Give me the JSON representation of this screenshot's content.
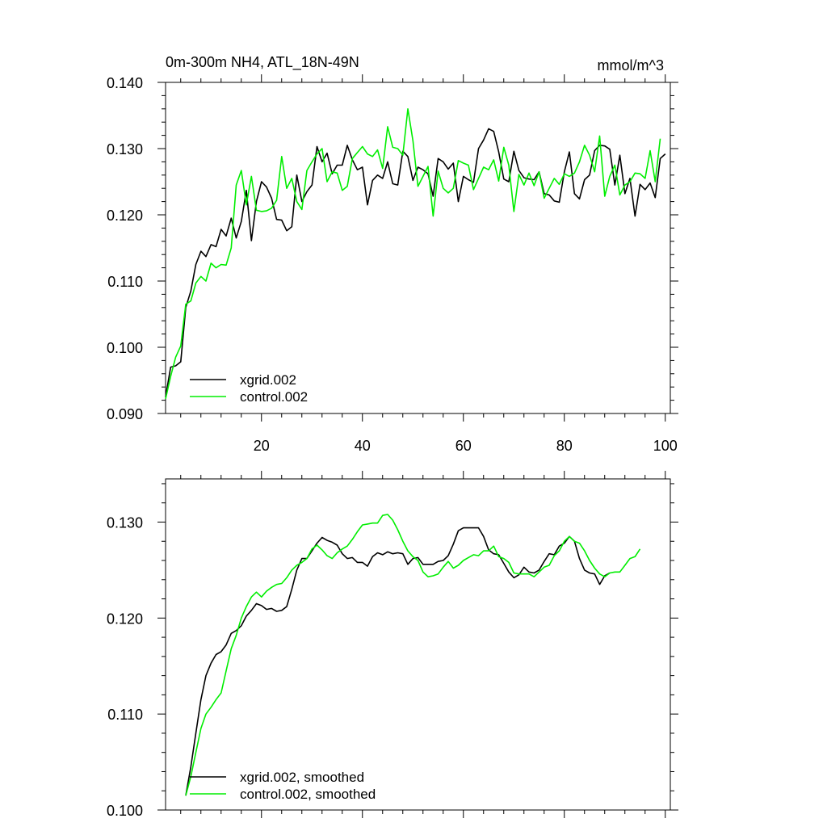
{
  "chart_data": [
    {
      "type": "line",
      "title": "0m-300m NH4, ATL_18N-49N",
      "units": "mmol/m^3",
      "xlim": [
        1,
        101
      ],
      "ylim": [
        0.09,
        0.14
      ],
      "x_ticks": [
        20,
        40,
        60,
        80,
        100
      ],
      "y_ticks": [
        "0.090",
        "0.100",
        "0.110",
        "0.120",
        "0.130",
        "0.140"
      ],
      "legend": {
        "placement": "bottom-left",
        "entries": [
          "xgrid.002",
          "control.002"
        ]
      },
      "series": [
        {
          "name": "xgrid.002",
          "color": "#000000",
          "x_start": 1,
          "values": [
            0.0925,
            0.097,
            0.0972,
            0.0978,
            0.106,
            0.1085,
            0.1125,
            0.1145,
            0.1137,
            0.1155,
            0.1152,
            0.1178,
            0.1168,
            0.1195,
            0.1165,
            0.119,
            0.1237,
            0.1161,
            0.122,
            0.125,
            0.1242,
            0.1225,
            0.1193,
            0.1192,
            0.1176,
            0.1182,
            0.126,
            0.122,
            0.1235,
            0.1245,
            0.1303,
            0.128,
            0.1293,
            0.1262,
            0.1275,
            0.1275,
            0.1305,
            0.1283,
            0.1268,
            0.1272,
            0.1215,
            0.1252,
            0.126,
            0.1255,
            0.128,
            0.1247,
            0.1245,
            0.1296,
            0.1288,
            0.1252,
            0.1272,
            0.1268,
            0.1262,
            0.1228,
            0.1285,
            0.128,
            0.1269,
            0.1278,
            0.122,
            0.1258,
            0.1253,
            0.1249,
            0.13,
            0.1313,
            0.133,
            0.1326,
            0.1295,
            0.1254,
            0.125,
            0.1296,
            0.1267,
            0.1256,
            0.1254,
            0.1253,
            0.1265,
            0.1232,
            0.123,
            0.1221,
            0.1219,
            0.1265,
            0.1295,
            0.1232,
            0.1224,
            0.1253,
            0.126,
            0.1297,
            0.1305,
            0.1304,
            0.1299,
            0.1245,
            0.129,
            0.1232,
            0.1255,
            0.1198,
            0.1246,
            0.1238,
            0.1248,
            0.1226,
            0.1285,
            0.1292
          ]
        },
        {
          "name": "control.002",
          "color": "#00ee00",
          "x_start": 1,
          "values": [
            0.0922,
            0.0956,
            0.0985,
            0.1002,
            0.1065,
            0.107,
            0.1097,
            0.1107,
            0.11,
            0.1127,
            0.112,
            0.1125,
            0.1124,
            0.115,
            0.1245,
            0.1267,
            0.1215,
            0.1258,
            0.1207,
            0.1205,
            0.1206,
            0.121,
            0.1222,
            0.1288,
            0.124,
            0.1255,
            0.122,
            0.1208,
            0.1267,
            0.128,
            0.1292,
            0.13,
            0.125,
            0.1265,
            0.1263,
            0.1237,
            0.1243,
            0.1285,
            0.1294,
            0.1303,
            0.1292,
            0.1288,
            0.1298,
            0.127,
            0.1333,
            0.1302,
            0.13,
            0.129,
            0.136,
            0.1312,
            0.1243,
            0.1258,
            0.1273,
            0.1198,
            0.1266,
            0.124,
            0.1233,
            0.124,
            0.1282,
            0.1278,
            0.1275,
            0.1238,
            0.1255,
            0.1272,
            0.1268,
            0.1283,
            0.1251,
            0.1302,
            0.1275,
            0.1205,
            0.1261,
            0.1245,
            0.1263,
            0.1244,
            0.1265,
            0.1225,
            0.124,
            0.1255,
            0.1246,
            0.1262,
            0.1258,
            0.1263,
            0.128,
            0.1305,
            0.129,
            0.1265,
            0.1319,
            0.1228,
            0.1258,
            0.1275,
            0.123,
            0.1245,
            0.125,
            0.1263,
            0.1262,
            0.1255,
            0.1297,
            0.125,
            0.1315
          ]
        }
      ]
    },
    {
      "type": "line",
      "xlim": [
        1,
        101
      ],
      "ylim": [
        0.1,
        0.1345
      ],
      "y_ticks": [
        "0.100",
        "0.110",
        "0.120",
        "0.130"
      ],
      "legend": {
        "placement": "bottom-left",
        "entries": [
          "xgrid.002, smoothed",
          "control.002, smoothed"
        ]
      },
      "series": [
        {
          "name": "xgrid.002, smoothed",
          "color": "#000000",
          "x_start": 5,
          "values": [
            0.1015,
            0.1045,
            0.108,
            0.1115,
            0.114,
            0.1153,
            0.1162,
            0.1165,
            0.1172,
            0.1184,
            0.1187,
            0.1192,
            0.1202,
            0.1208,
            0.1215,
            0.1213,
            0.1209,
            0.121,
            0.1207,
            0.1208,
            0.1212,
            0.123,
            0.125,
            0.1262,
            0.1262,
            0.127,
            0.1278,
            0.1284,
            0.1281,
            0.1279,
            0.1276,
            0.1267,
            0.1262,
            0.1263,
            0.1258,
            0.1258,
            0.1254,
            0.1264,
            0.1268,
            0.1266,
            0.1269,
            0.1267,
            0.1268,
            0.1267,
            0.1256,
            0.1262,
            0.1263,
            0.1256,
            0.1256,
            0.1256,
            0.1259,
            0.126,
            0.1265,
            0.1277,
            0.1291,
            0.1294,
            0.1294,
            0.1294,
            0.1294,
            0.1285,
            0.1271,
            0.1267,
            0.1266,
            0.1257,
            0.1248,
            0.1242,
            0.1245,
            0.1253,
            0.1248,
            0.1247,
            0.125,
            0.1259,
            0.1267,
            0.1266,
            0.1275,
            0.1278,
            0.1285,
            0.128,
            0.1262,
            0.125,
            0.1247,
            0.1246,
            0.1235,
            0.1244,
            0.1247
          ]
        },
        {
          "name": "control.002, smoothed",
          "color": "#00ee00",
          "x_start": 5,
          "values": [
            0.1015,
            0.1035,
            0.106,
            0.1085,
            0.11,
            0.1107,
            0.1115,
            0.1122,
            0.1145,
            0.1168,
            0.1182,
            0.12,
            0.1212,
            0.1222,
            0.1227,
            0.1222,
            0.1228,
            0.1232,
            0.1235,
            0.1236,
            0.1242,
            0.125,
            0.1255,
            0.1258,
            0.1262,
            0.1272,
            0.1276,
            0.1271,
            0.1265,
            0.1262,
            0.1268,
            0.1272,
            0.1275,
            0.1282,
            0.129,
            0.1297,
            0.1298,
            0.1299,
            0.1299,
            0.1307,
            0.1308,
            0.1302,
            0.1292,
            0.128,
            0.127,
            0.1264,
            0.126,
            0.1248,
            0.1243,
            0.1244,
            0.1246,
            0.1253,
            0.1259,
            0.1252,
            0.1255,
            0.126,
            0.1263,
            0.1266,
            0.1265,
            0.127,
            0.127,
            0.1275,
            0.1264,
            0.1262,
            0.1258,
            0.1247,
            0.1246,
            0.1246,
            0.1246,
            0.1243,
            0.1248,
            0.1253,
            0.1255,
            0.1265,
            0.127,
            0.128,
            0.1285,
            0.128,
            0.1278,
            0.127,
            0.126,
            0.1252,
            0.1246,
            0.1243,
            0.1247,
            0.1248,
            0.1248,
            0.1255,
            0.1262,
            0.1264,
            0.1272
          ]
        }
      ]
    }
  ]
}
